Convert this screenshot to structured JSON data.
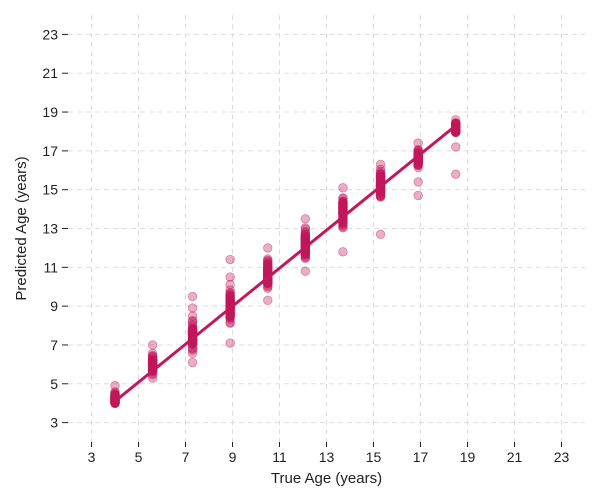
{
  "chart_data": {
    "type": "scatter",
    "title": "",
    "xlabel": "True Age (years)",
    "ylabel": "Predicted Age (years)",
    "xlim": [
      2,
      24
    ],
    "ylim": [
      2,
      24
    ],
    "xticks": [
      3,
      5,
      7,
      9,
      11,
      13,
      15,
      17,
      19,
      21,
      23
    ],
    "yticks": [
      3,
      5,
      7,
      9,
      11,
      13,
      15,
      17,
      19,
      21,
      23
    ],
    "grid": true,
    "colors": {
      "points": "#c2185b",
      "line": "#c2185b"
    },
    "groups": [
      {
        "x": 4.0,
        "center": 4.2,
        "spread": 0.35,
        "min": 4.0,
        "max": 4.9,
        "outliers": []
      },
      {
        "x": 5.6,
        "center": 6.0,
        "spread": 0.5,
        "min": 5.3,
        "max": 7.0,
        "outliers": []
      },
      {
        "x": 7.3,
        "center": 7.5,
        "spread": 0.8,
        "min": 6.1,
        "max": 8.9,
        "outliers": [
          9.5
        ]
      },
      {
        "x": 8.9,
        "center": 9.0,
        "spread": 0.9,
        "min": 7.1,
        "max": 10.5,
        "outliers": [
          11.4
        ]
      },
      {
        "x": 10.5,
        "center": 10.6,
        "spread": 0.8,
        "min": 9.3,
        "max": 12.0,
        "outliers": []
      },
      {
        "x": 12.1,
        "center": 12.1,
        "spread": 0.8,
        "min": 10.8,
        "max": 13.5,
        "outliers": []
      },
      {
        "x": 13.7,
        "center": 13.8,
        "spread": 0.9,
        "min": 11.8,
        "max": 15.1,
        "outliers": []
      },
      {
        "x": 15.3,
        "center": 15.3,
        "spread": 0.8,
        "min": 12.7,
        "max": 16.3,
        "outliers": []
      },
      {
        "x": 16.9,
        "center": 16.6,
        "spread": 0.4,
        "min": 15.4,
        "max": 17.4,
        "outliers": [
          14.7
        ]
      },
      {
        "x": 18.5,
        "center": 18.2,
        "spread": 0.25,
        "min": 17.2,
        "max": 18.6,
        "outliers": [
          15.8
        ]
      }
    ],
    "fit_line": {
      "x": [
        4.0,
        18.5
      ],
      "y": [
        4.1,
        18.3
      ]
    }
  }
}
